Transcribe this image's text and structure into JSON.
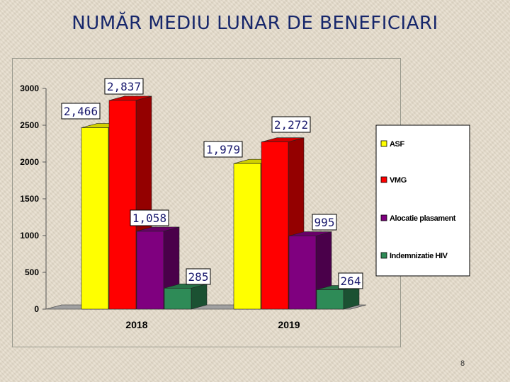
{
  "title": "NUMĂR MEDIU LUNAR DE BENEFICIARI",
  "page_number": "8",
  "chart_data": {
    "type": "bar",
    "categories": [
      "2018",
      "2019"
    ],
    "series": [
      {
        "name": "ASF",
        "values": [
          2466,
          1979
        ],
        "labels": [
          "2,466",
          "1,979"
        ],
        "color": "#ffff00"
      },
      {
        "name": "VMG",
        "values": [
          2837,
          2272
        ],
        "labels": [
          "2,837",
          "2,272"
        ],
        "color": "#ff0000"
      },
      {
        "name": "Alocatie plasament",
        "values": [
          1058,
          995
        ],
        "labels": [
          "1,058",
          "995"
        ],
        "color": "#7f007f"
      },
      {
        "name": "Indemnizatie HIV",
        "values": [
          285,
          264
        ],
        "labels": [
          "285",
          "264"
        ],
        "color": "#2e8b57"
      }
    ],
    "yticks": [
      "0",
      "500",
      "1000",
      "1500",
      "2000",
      "2500",
      "3000"
    ],
    "ylim": [
      0,
      3000
    ],
    "grid": false,
    "legend_position": "right",
    "three_d": true
  }
}
